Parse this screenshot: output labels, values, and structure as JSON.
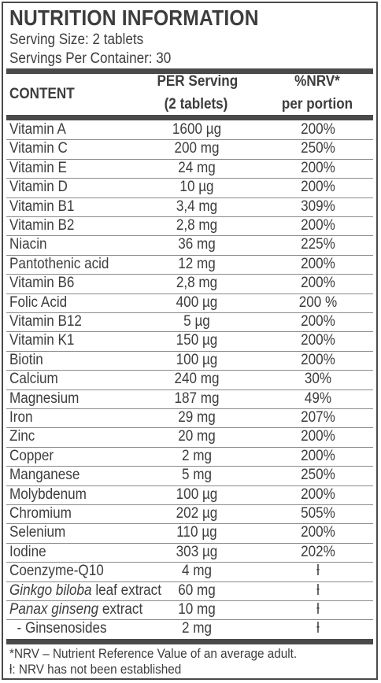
{
  "title": "NUTRITION INFORMATION",
  "serving_size": "Serving Size: 2 tablets",
  "servings_per_container": "Servings Per Container: 30",
  "headers": {
    "content": "CONTENT",
    "per_serving_1": "PER Serving",
    "per_serving_2": "(2 tablets)",
    "nrv_1": "%NRV*",
    "nrv_2": "per portion"
  },
  "rows": [
    {
      "name": "Vitamin A",
      "amount": "1600 µg",
      "nrv": "200%"
    },
    {
      "name": "Vitamin C",
      "amount": "200 mg",
      "nrv": "250%"
    },
    {
      "name": "Vitamin E",
      "amount": "24 mg",
      "nrv": "200%"
    },
    {
      "name": "Vitamin D",
      "amount": "10 µg",
      "nrv": "200%"
    },
    {
      "name": "Vitamin B1",
      "amount": "3,4 mg",
      "nrv": "309%"
    },
    {
      "name": "Vitamin B2",
      "amount": "2,8 mg",
      "nrv": "200%"
    },
    {
      "name": "Niacin",
      "amount": "36 mg",
      "nrv": "225%"
    },
    {
      "name": "Pantothenic acid",
      "amount": "12 mg",
      "nrv": "200%"
    },
    {
      "name": "Vitamin B6",
      "amount": "2,8 mg",
      "nrv": "200%"
    },
    {
      "name": "Folic Acid",
      "amount": "400 µg",
      "nrv": "200 %"
    },
    {
      "name": "Vitamin B12",
      "amount": "5 µg",
      "nrv": "200%"
    },
    {
      "name": "Vitamin K1",
      "amount": "150 µg",
      "nrv": "200%"
    },
    {
      "name": "Biotin",
      "amount": "100 µg",
      "nrv": "200%"
    },
    {
      "name": "Calcium",
      "amount": "240 mg",
      "nrv": "30%"
    },
    {
      "name": "Magnesium",
      "amount": "187 mg",
      "nrv": "49%"
    },
    {
      "name": "Iron",
      "amount": "29 mg",
      "nrv": "207%"
    },
    {
      "name": "Zinc",
      "amount": "20 mg",
      "nrv": "200%"
    },
    {
      "name": "Copper",
      "amount": "2 mg",
      "nrv": "200%"
    },
    {
      "name": "Manganese",
      "amount": "5 mg",
      "nrv": "250%"
    },
    {
      "name": "Molybdenum",
      "amount": "100 µg",
      "nrv": "200%"
    },
    {
      "name": "Chromium",
      "amount": "202 µg",
      "nrv": "505%"
    },
    {
      "name": "Selenium",
      "amount": "110 µg",
      "nrv": "200%"
    },
    {
      "name": "Iodine",
      "amount": "303 µg",
      "nrv": "202%"
    },
    {
      "name": "Coenzyme-Q10",
      "amount": "4 mg",
      "nrv": "ƚ"
    }
  ],
  "extract_rows": [
    {
      "name_italic": "Ginkgo biloba",
      "name_rest": " leaf extract",
      "amount": "60 mg",
      "nrv": "ƚ"
    },
    {
      "name_italic": "Panax ginseng",
      "name_rest": " extract",
      "amount": "10 mg",
      "nrv": "ƚ"
    }
  ],
  "sub_row": {
    "name": "  - Ginsenosides",
    "amount": "2 mg",
    "nrv": "ƚ"
  },
  "footnote_1": "*NRV – Nutrient Reference Value of an average adult.",
  "footnote_2": "ƚ: NRV has not been established"
}
